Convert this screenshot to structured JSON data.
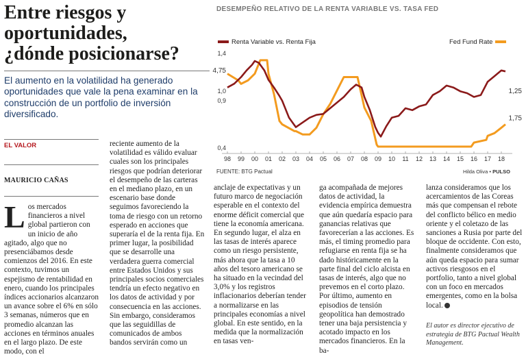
{
  "article": {
    "headline": [
      "Entre riesgos y",
      "oportunidades,",
      "¿dónde posicionarse?"
    ],
    "lead": "El aumento en la volatilidad ha generado oportunidades que vale la pena examinar en la construcción de un portfolio de inversión diversificado.",
    "section": "EL VALOR",
    "author": "MAURICIO CAÑAS",
    "dropcap": "L",
    "col1": "os mercados financieros a nivel global partieron con un inicio de año agitado, algo que no presenciábamos desde comienzos del 2016. En este contexto, tuvimos un espejismo de rentabilidad en enero, cuando los principales índices accionarios alcanzaron un avance sobre el 6% en sólo 3 semanas, números que en promedio alcanzan las acciones en términos anuales en el largo plazo. De este modo, con el",
    "col2": "reciente aumento de la volatilidad es válido evaluar cuales son los principales riesgos que podrían deteriorar el desempeño de las carteras en el mediano plazo, en un escenario base donde seguimos favoreciendo la toma de riesgo con un retorno esperado en acciones que superaría el de la renta fija. En primer lugar, la posibilidad que se desarrolle una verdadera guerra comercial entre Estados Unidos y sus principales socios comerciales tendría un efecto negativo en los datos de actividad y por consecuencia en las acciones. Sin embargo, consideramos que las seguidillas de comunicados de ambos bandos servirán como un",
    "col3": "anclaje de expectativas y un futuro marco de negociación esperable en el contexto del enorme déficit comercial que tiene la economía americana. En segundo lugar, el alza en las tasas de interés aparece como un riesgo persistente, más ahora que la tasa a 10 años del tesoro americano se ha situado en la vecindad del 3,0% y los registros inflacionarios deberían tender a normalizarse en las principales economías a nivel global. En este sentido, en la medida que la normalización en tasas ven-",
    "col4": "ga acompañada de mejores datos de actividad, la evidencia empírica demuestra que aún quedaría espacio para ganancias relativas que favorecerían a las acciones. Es más, el timing promedio para refugiarse en renta fija se ha dado históricamente en la parte final del ciclo alcista en tasas de interés, algo que no prevemos en el corto plazo. Por último, aumento en episodios de tensión geopolítica han demostrado tener una baja persistencia y acotado impacto en los mercados financieros. En la ba-",
    "col5": "lanza consideramos que los acercamientos de las Coreas más que compensan el rebote del conflicto bélico en medio oriente y el coletazo de las sanciones a Rusia por parte del bloque de occidente. Con esto, finalmente consideramos que aún queda espacio para sumar activos riesgosos en el portfolio, tanto a nivel global con un foco en mercados emergentes, como en la bolsa local.",
    "bio": "El autor es director ejecutivo de estrategia de BTG Pactual Wealth Management."
  },
  "chart": {
    "title": "DESEMPEÑO RELATIVO DE LA RENTA VARIABLE VS. TASA FED",
    "source": "FUENTE: BTG Pactual",
    "credit_name": "Hilda Oliva",
    "credit_sep": " • ",
    "credit_outlet": "PULSO"
  },
  "chart_data": {
    "type": "line",
    "x_ticks": [
      "98",
      "99",
      "00",
      "01",
      "02",
      "03",
      "04",
      "05",
      "06",
      "07",
      "08",
      "09",
      "10",
      "11",
      "12",
      "13",
      "14",
      "15",
      "16",
      "17",
      "18"
    ],
    "left_axis_ticks": [
      "1,4",
      "1,0",
      "0,9",
      "0,4"
    ],
    "left_axis_values": [
      1.4,
      1.0,
      0.9,
      0.4
    ],
    "left_ylim": [
      0.4,
      1.4
    ],
    "right_axis_ticks": [
      "1,25",
      "1,75"
    ],
    "annotation_left": "4,75",
    "grid": false,
    "series": [
      {
        "name": "Renta Variable vs. Renta Fija",
        "color": "#8b1a1a",
        "axis": "left",
        "x": [
          1998.0,
          1998.5,
          1999.0,
          1999.4,
          1999.8,
          2000.0,
          2000.3,
          2000.7,
          2001.0,
          2001.4,
          2001.8,
          2002.0,
          2002.5,
          2002.8,
          2003.0,
          2003.5,
          2004.0,
          2004.5,
          2005.0,
          2005.5,
          2006.0,
          2006.5,
          2007.0,
          2007.4,
          2007.8,
          2008.0,
          2008.4,
          2008.8,
          2009.0,
          2009.2,
          2009.6,
          2010.0,
          2010.5,
          2011.0,
          2011.5,
          2012.0,
          2012.5,
          2013.0,
          2013.5,
          2014.0,
          2014.5,
          2015.0,
          2015.5,
          2016.0,
          2016.5,
          2017.0,
          2017.5,
          2018.0,
          2018.3
        ],
        "y": [
          1.04,
          1.08,
          1.15,
          1.22,
          1.28,
          1.32,
          1.3,
          1.22,
          1.12,
          1.04,
          0.95,
          0.9,
          0.72,
          0.66,
          0.62,
          0.67,
          0.72,
          0.75,
          0.76,
          0.82,
          0.88,
          0.94,
          1.02,
          1.07,
          1.04,
          0.94,
          0.8,
          0.62,
          0.56,
          0.52,
          0.63,
          0.72,
          0.74,
          0.82,
          0.8,
          0.84,
          0.86,
          0.96,
          1.0,
          1.06,
          1.04,
          1.0,
          0.98,
          0.94,
          0.96,
          1.1,
          1.16,
          1.22,
          1.21
        ]
      },
      {
        "name": "Fed Fund Rate",
        "color": "#f39b1f",
        "axis": "right",
        "x": [
          1998.0,
          1998.8,
          1999.0,
          1999.5,
          2000.0,
          2000.4,
          2000.9,
          2001.0,
          2001.4,
          2001.8,
          2002.0,
          2002.9,
          2003.0,
          2003.5,
          2004.0,
          2004.5,
          2005.0,
          2005.5,
          2006.0,
          2006.5,
          2007.0,
          2007.5,
          2008.0,
          2008.5,
          2008.9,
          2009.0,
          2015.8,
          2016.0,
          2016.9,
          2017.0,
          2017.5,
          2018.0,
          2018.3
        ],
        "y": [
          5.5,
          5.0,
          4.75,
          5.0,
          5.5,
          6.5,
          6.5,
          5.5,
          4.0,
          2.0,
          1.75,
          1.25,
          1.25,
          1.0,
          1.0,
          1.5,
          2.5,
          3.25,
          4.25,
          5.25,
          5.25,
          5.25,
          3.0,
          2.0,
          0.25,
          0.1,
          0.1,
          0.4,
          0.6,
          0.9,
          1.1,
          1.5,
          1.75
        ],
        "ylim": [
          0.0,
          7.0
        ]
      }
    ],
    "legend": "top"
  }
}
